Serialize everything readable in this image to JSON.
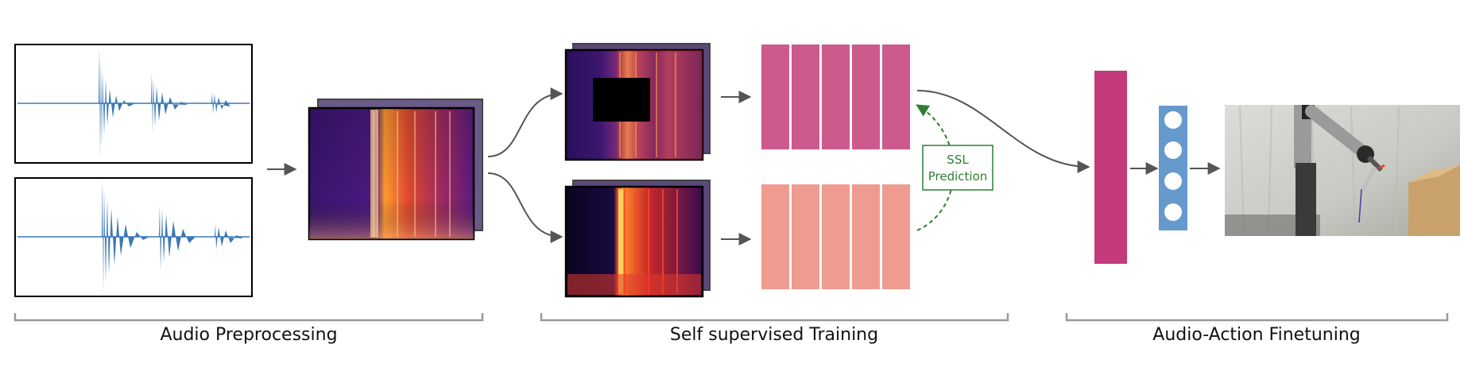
{
  "sections": [
    {
      "label": "Audio Preprocessing"
    },
    {
      "label": "Self supervised Training"
    },
    {
      "label": "Audio-Action Finetuning"
    }
  ],
  "ssl_box": {
    "line1": "SSL",
    "line2": "Prediction"
  },
  "colors": {
    "waveform": "#3a78b5",
    "encoder_top": "#cc5a8c",
    "encoder_bottom": "#ef9b90",
    "fused_embedding": "#c53a7a",
    "policy_mlp": "#6699cc",
    "ssl_arrow": "#2e7d32",
    "arrow": "#555555",
    "bracket": "#999999"
  },
  "encoder_blocks_per_branch": 5,
  "policy_nodes": 4,
  "icons": [
    "audio-waveform-icon",
    "spectrogram-icon",
    "robot-arm-photo"
  ]
}
